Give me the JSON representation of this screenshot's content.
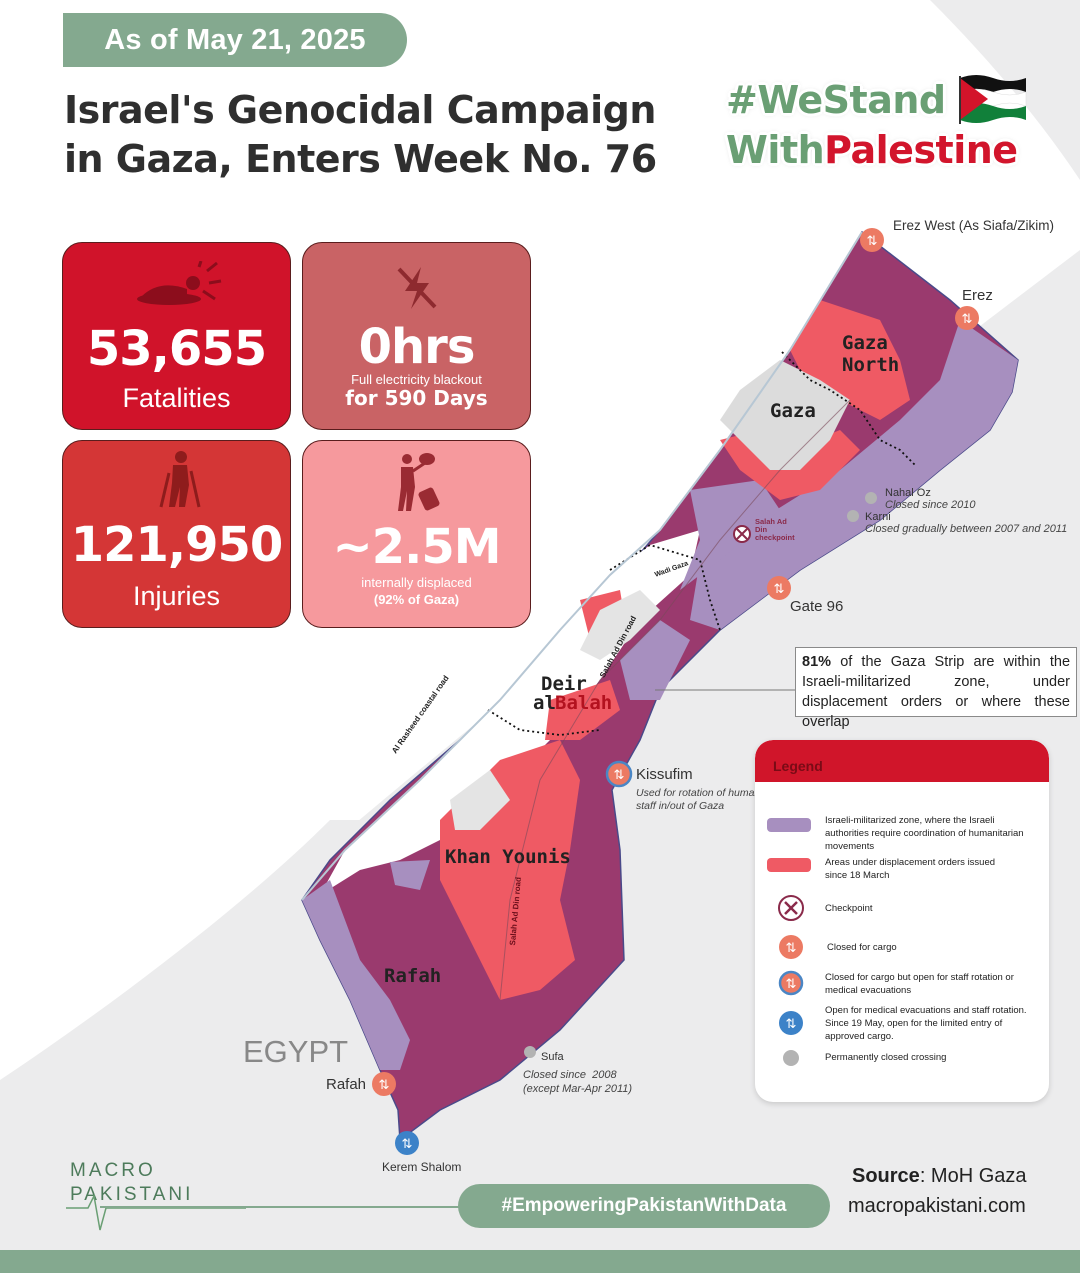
{
  "header": {
    "date": "As of May 21, 2025",
    "title_line1": "Israel's Genocidal Campaign",
    "title_line2": "in Gaza, Enters Week No. 76",
    "hashtag_line1": "#WeStand",
    "hashtag_line2a": "With",
    "hashtag_line2b": "Palestine"
  },
  "stats": [
    {
      "value": "53,655",
      "label": "Fatalities",
      "color": "#d0132a"
    },
    {
      "value": "0hrs",
      "sub1": "Full electricity blackout",
      "sub2": "for 590 Days",
      "color": "#c96365"
    },
    {
      "value": "121,950",
      "label": "Injuries",
      "color": "#d43636"
    },
    {
      "value": "~2.5M",
      "sub1": "internally displaced",
      "sub2": "(92% of Gaza)",
      "color": "#f6999d"
    }
  ],
  "map": {
    "places": {
      "gaza_north": "Gaza\nNorth",
      "gaza": "Gaza",
      "deir": "Deir",
      "al": "al",
      "balah": "Balah",
      "khan_younis": "Khan Younis",
      "rafah_city": "Rafah",
      "egypt": "EGYPT",
      "coastal_road": "Al Rasheed coastal road",
      "salah_road_n": "Salah Ad Din road",
      "salah_road_s": "Salah Ad Din road",
      "wadi": "Wadi Gaza",
      "salah_checkpoint": "Salah Ad Din checkpoint"
    },
    "crossings": {
      "erez_west": "Erez West (As Siafa/Zikim)",
      "erez": "Erez",
      "nahal_oz": "Nahal Oz",
      "nahal_oz_note": "Closed since 2010",
      "karni": "Karni",
      "karni_note": "Closed gradually between 2007 and 2011",
      "gate96": "Gate 96",
      "kissufim": "Kissufim",
      "kissufim_note1": "Used for rotation of humani",
      "kissufim_note2": "staff in/out of Gaza",
      "sufa": "Sufa",
      "sufa_note1": "Closed since  2008",
      "sufa_note2": "(except Mar-Apr 2011)",
      "rafah": "Rafah",
      "kerem": "Kerem Shalom"
    },
    "callout_bold": "81%",
    "callout_text": "of the Gaza Strip are within the Israeli-militarized zone, under displacement orders or where these overlap",
    "colors": {
      "militarized": "#a78fbf",
      "displacement": "#ef5a64",
      "overlap": "#9a3a6e"
    }
  },
  "legend": {
    "title": "Legend",
    "items": [
      "Israeli-militarized zone, where the Israeli authorities require coordination of humanitarian movements",
      "Areas under displacement orders issued since 18 March",
      "Checkpoint",
      "Closed for cargo",
      "Closed for cargo but open for staff rotation or medical evacuations",
      "Open for medical evacuations and staff rotation. Since 19 May, open for the limited entry of approved cargo.",
      "Permanently closed crossing"
    ]
  },
  "footer": {
    "logo_line1": "MACRO",
    "logo_line2": "PAKISTANI",
    "hashtag": "#EmpoweringPakistanWithData",
    "source_label": "Source",
    "source_value": ": MoH Gaza",
    "url": "macropakistani.com"
  }
}
